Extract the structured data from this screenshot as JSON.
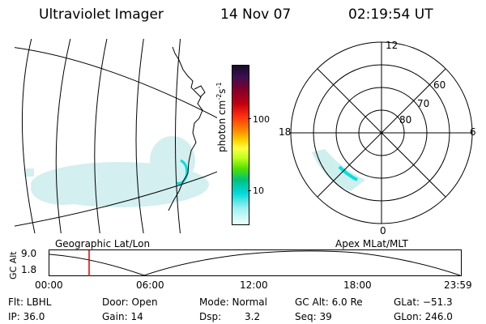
{
  "header": {
    "instrument": "Ultraviolet Imager",
    "date": "14 Nov 07",
    "time": "02:19:54 UT"
  },
  "colorbar": {
    "unit": "photon cm",
    "unit_exp1": "-2",
    "unit_s": "s",
    "unit_exp2": "-1",
    "tick_100": "100",
    "tick_10": "10"
  },
  "polar": {
    "mlt_top": "12",
    "mlt_left": "18",
    "mlt_right": "6",
    "mlt_bottom": "0",
    "lat_60": "60",
    "lat_70": "70",
    "lat_80": "80"
  },
  "timeline": {
    "geo_label": "Geographic Lat/Lon",
    "apex_label": "Apex MLat/MLT",
    "y_axis_label": "GC Alt",
    "y_top": "9.0",
    "y_bottom": "1.8",
    "x_ticks": [
      "00:00",
      "06:00",
      "12:00",
      "18:00",
      "23:59"
    ],
    "marker_time": "02:19:54"
  },
  "info": {
    "flt": "Flt: LBHL",
    "ip": "IP: 36.0",
    "door": "Door: Open",
    "gain": "Gain: 14",
    "mode": "Mode: Normal",
    "dsp_label": "Dsp:",
    "dsp_value": "3.2",
    "gc_alt": "GC Alt: 6.0 Re",
    "seq": "Seq: 39",
    "glat": "GLat: −51.3",
    "glon": "GLon: 246.0"
  },
  "colors": {
    "aurora_faint": "#cfeeee",
    "aurora_bright": "#00e0e0",
    "marker": "#dd0000"
  }
}
